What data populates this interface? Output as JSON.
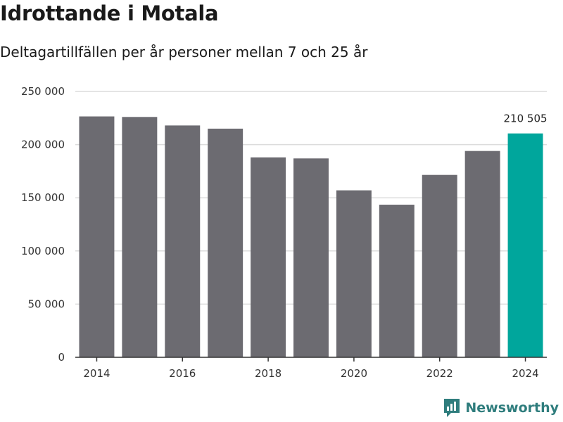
{
  "chart_data": {
    "type": "bar",
    "title": "Idrottande i Motala",
    "subtitle": "Deltagartillfällen per år personer mellan 7 och 25 år",
    "xlabel": "",
    "ylabel": "",
    "categories": [
      2014,
      2015,
      2016,
      2017,
      2018,
      2019,
      2020,
      2021,
      2022,
      2023,
      2024
    ],
    "values": [
      226500,
      226000,
      218000,
      215000,
      188000,
      187000,
      157000,
      143500,
      171500,
      194000,
      210505
    ],
    "ylim": [
      0,
      250000
    ],
    "yticks": [
      {
        "value": 0,
        "label": "0"
      },
      {
        "value": 50000,
        "label": "50 000"
      },
      {
        "value": 100000,
        "label": "100 000"
      },
      {
        "value": 150000,
        "label": "150 000"
      },
      {
        "value": 200000,
        "label": "200 000"
      },
      {
        "value": 250000,
        "label": "250 000"
      }
    ],
    "xticks": [
      {
        "value": 2014,
        "label": "2014"
      },
      {
        "value": 2016,
        "label": "2016"
      },
      {
        "value": 2018,
        "label": "2018"
      },
      {
        "value": 2020,
        "label": "2020"
      },
      {
        "value": 2022,
        "label": "2022"
      },
      {
        "value": 2024,
        "label": "2024"
      }
    ],
    "highlight": {
      "category": 2024,
      "label": "210 505"
    },
    "colors": {
      "bar": "#6c6b71",
      "highlight": "#00a69c",
      "grid": "#dcdcdc",
      "axis": "#333333"
    },
    "grid": true
  },
  "brand": {
    "name": "Newsworthy",
    "icon": "newsworthy-logo-icon",
    "color": "#2f7d7d"
  }
}
